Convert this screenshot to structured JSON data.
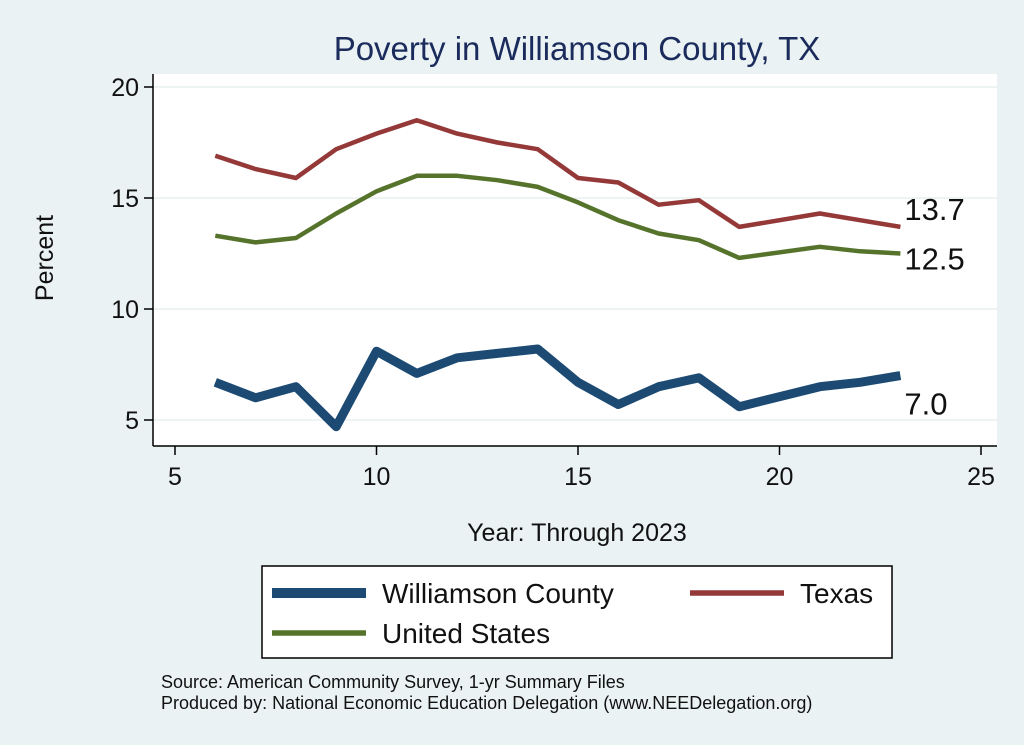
{
  "chart_data": {
    "type": "line",
    "title": "Poverty in Williamson County, TX",
    "xlabel": "Year: Through 2023",
    "ylabel": "Percent",
    "xlim": [
      5,
      25
    ],
    "ylim": [
      4.5,
      20.5
    ],
    "xticks": [
      5,
      10,
      15,
      20,
      25
    ],
    "yticks": [
      5,
      10,
      15,
      20
    ],
    "grid": true,
    "legend_position": "bottom",
    "x": [
      6,
      7,
      8,
      9,
      10,
      11,
      12,
      13,
      14,
      15,
      16,
      17,
      18,
      19,
      21,
      22,
      23
    ],
    "series": [
      {
        "name": "Williamson County",
        "color": "#1c4a73",
        "values": [
          6.7,
          6.0,
          6.5,
          4.7,
          8.1,
          7.1,
          7.8,
          8.0,
          8.2,
          6.7,
          5.7,
          6.5,
          6.9,
          5.6,
          6.5,
          6.7,
          7.0
        ],
        "end_label": "7.0"
      },
      {
        "name": "Texas",
        "color": "#943838",
        "values": [
          16.9,
          16.3,
          15.9,
          17.2,
          17.9,
          18.5,
          17.9,
          17.5,
          17.2,
          15.9,
          15.7,
          14.7,
          14.9,
          13.7,
          14.3,
          14.0,
          13.7
        ],
        "end_label": "13.7"
      },
      {
        "name": "United States",
        "color": "#56732c",
        "values": [
          13.3,
          13.0,
          13.2,
          14.3,
          15.3,
          16.0,
          16.0,
          15.8,
          15.5,
          14.8,
          14.0,
          13.4,
          13.1,
          12.3,
          12.8,
          12.6,
          12.5
        ],
        "end_label": "12.5"
      }
    ]
  },
  "notes": {
    "source": "Source: American Community Survey, 1-yr Summary Files",
    "produced_by": "Produced by: National Economic Education Delegation (www.NEEDelegation.org)"
  }
}
